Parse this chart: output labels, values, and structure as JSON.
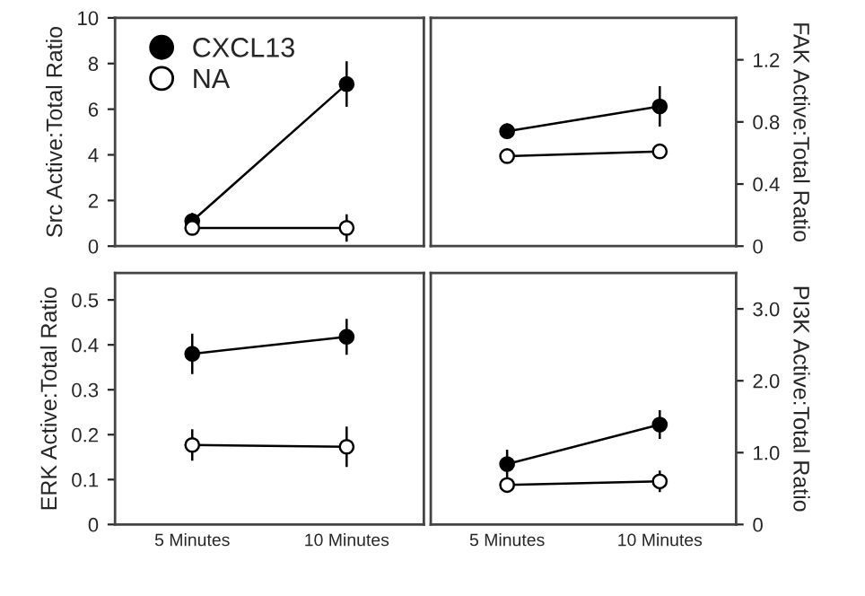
{
  "chart_data": [
    {
      "type": "line",
      "ylabel": "Src Active:Total Ratio",
      "categories": [
        null,
        null
      ],
      "ylim": [
        0,
        10
      ],
      "yticks": [
        0,
        2,
        4,
        6,
        8,
        10
      ],
      "tick_labels": "y",
      "marker": "circle",
      "legend": "top left",
      "series": [
        {
          "name": "CXCL13",
          "color": "#000000",
          "values": [
            1.1,
            7.1
          ],
          "errors": [
            0.35,
            1.0
          ]
        },
        {
          "name": "NA",
          "color": "#ffffff",
          "values": [
            0.8,
            0.8
          ],
          "errors": [
            0.2,
            0.6
          ]
        }
      ]
    },
    {
      "type": "line",
      "ylabel": "FAK Active:Total Ratio",
      "categories": [
        null,
        null
      ],
      "ylim": [
        0,
        1.47
      ],
      "yticks": [
        {
          "value": 0,
          "label": "0"
        },
        {
          "value": 0.4,
          "label": "0.4"
        },
        {
          "value": 0.8,
          "label": "0.8"
        },
        {
          "value": 1.2,
          "label": "1.2"
        }
      ],
      "tick_labels": "y",
      "marker": "circle",
      "series": [
        {
          "color": "#000000",
          "values": [
            0.74,
            0.9
          ],
          "errors": [
            0.05,
            0.13
          ]
        },
        {
          "color": "#ffffff",
          "values": [
            0.58,
            0.61
          ],
          "errors": [
            0.04,
            0.04
          ]
        }
      ]
    },
    {
      "type": "line",
      "ylabel": "ERK Active:Total Ratio",
      "categories": [
        "5 Minutes",
        "10 Minutes"
      ],
      "ylim": [
        0,
        0.56
      ],
      "yticks": [
        0,
        0.1,
        0.2,
        0.3,
        0.4,
        0.5
      ],
      "marker": "circle",
      "series": [
        {
          "color": "#000000",
          "values": [
            0.38,
            0.418
          ],
          "errors": [
            0.045,
            0.04
          ]
        },
        {
          "color": "#ffffff",
          "values": [
            0.177,
            0.173
          ],
          "errors": [
            0.035,
            0.045
          ]
        }
      ]
    },
    {
      "type": "line",
      "ylabel": "PI3K Active:Total Ratio",
      "categories": [
        "5 Minutes",
        "10 Minutes"
      ],
      "ylim": [
        0,
        3.5
      ],
      "yticks": [
        {
          "value": 0,
          "label": "0"
        },
        {
          "value": 1,
          "label": "1.0"
        },
        {
          "value": 2,
          "label": "2.0"
        },
        {
          "value": 3,
          "label": "3.0"
        }
      ],
      "marker": "circle",
      "series": [
        {
          "color": "#000000",
          "values": [
            0.84,
            1.39
          ],
          "errors": [
            0.2,
            0.2
          ]
        },
        {
          "color": "#ffffff",
          "values": [
            0.55,
            0.6
          ],
          "errors": [
            0.1,
            0.15
          ]
        }
      ]
    }
  ]
}
